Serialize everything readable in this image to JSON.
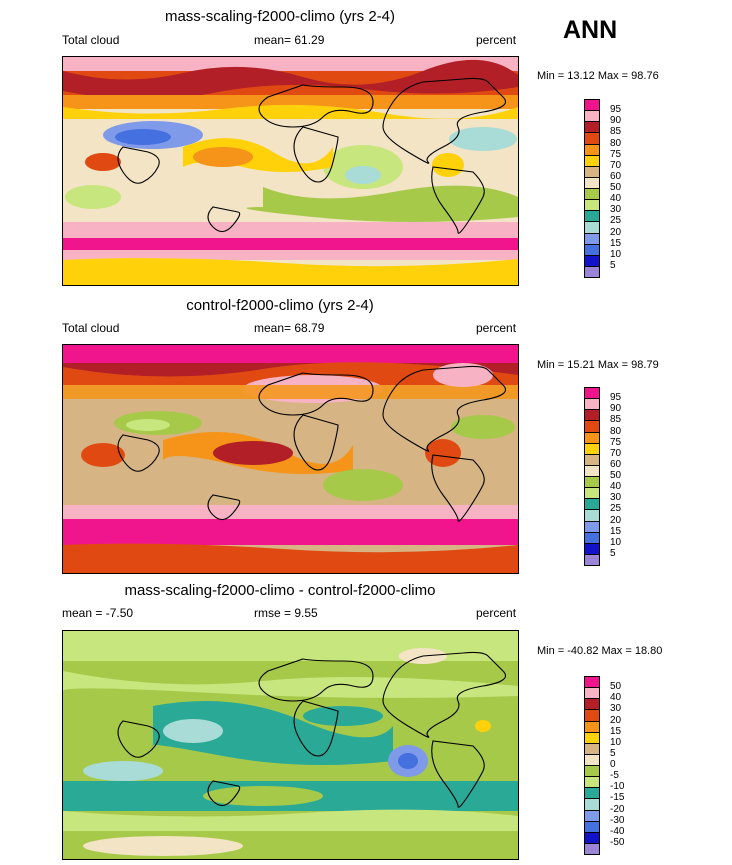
{
  "season": "ANN",
  "panels": [
    {
      "title": "mass-scaling-f2000-climo (yrs 2-4)",
      "left_label": "Total cloud",
      "center_label": "mean=  61.29",
      "right_label": "percent",
      "minmax": "Min =  13.12 Max =  98.76",
      "levels": [
        "95",
        "90",
        "85",
        "80",
        "75",
        "70",
        "60",
        "50",
        "40",
        "30",
        "25",
        "20",
        "15",
        "10",
        "5"
      ],
      "colors": [
        "#f0158c",
        "#f7b3c4",
        "#b21f26",
        "#e04a12",
        "#f59418",
        "#ffd10a",
        "#d6b483",
        "#f2e4c4",
        "#a6c94a",
        "#c8e67e",
        "#2aaa96",
        "#a9dcd6",
        "#7f9ae8",
        "#4470e0",
        "#1212c8",
        "#9a85d6"
      ]
    },
    {
      "title": "control-f2000-climo (yrs 2-4)",
      "left_label": "Total cloud",
      "center_label": "mean=  68.79",
      "right_label": "percent",
      "minmax": "Min =  15.21 Max =  98.79",
      "levels": [
        "95",
        "90",
        "85",
        "80",
        "75",
        "70",
        "60",
        "50",
        "40",
        "30",
        "25",
        "20",
        "15",
        "10",
        "5"
      ],
      "colors": [
        "#f0158c",
        "#f7b3c4",
        "#b21f26",
        "#e04a12",
        "#f59418",
        "#ffd10a",
        "#d6b483",
        "#f2e4c4",
        "#a6c94a",
        "#c8e67e",
        "#2aaa96",
        "#a9dcd6",
        "#7f9ae8",
        "#4470e0",
        "#1212c8",
        "#9a85d6"
      ]
    },
    {
      "title": "mass-scaling-f2000-climo - control-f2000-climo",
      "left_label": "mean =  -7.50",
      "center_label": "rmse =   9.55",
      "right_label": "percent",
      "minmax": "Min = -40.82 Max =  18.80",
      "levels": [
        "50",
        "40",
        "30",
        "20",
        "15",
        "10",
        "5",
        "0",
        "-5",
        "-10",
        "-15",
        "-20",
        "-30",
        "-40",
        "-50"
      ],
      "colors": [
        "#f0158c",
        "#f7b3c4",
        "#b21f26",
        "#e04a12",
        "#f59418",
        "#ffd10a",
        "#d6b483",
        "#f2e4c4",
        "#a6c94a",
        "#c8e67e",
        "#2aaa96",
        "#a9dcd6",
        "#7f9ae8",
        "#4470e0",
        "#1212c8",
        "#9a85d6"
      ]
    }
  ],
  "chart_data": [
    {
      "type": "heatmap",
      "title": "mass-scaling-f2000-climo (yrs 2-4)",
      "variable": "Total cloud",
      "units": "percent",
      "mean": 61.29,
      "min": 13.12,
      "max": 98.76,
      "contour_levels": [
        5,
        10,
        15,
        20,
        25,
        30,
        40,
        50,
        60,
        70,
        75,
        80,
        85,
        90,
        95
      ]
    },
    {
      "type": "heatmap",
      "title": "control-f2000-climo (yrs 2-4)",
      "variable": "Total cloud",
      "units": "percent",
      "mean": 68.79,
      "min": 15.21,
      "max": 98.79,
      "contour_levels": [
        5,
        10,
        15,
        20,
        25,
        30,
        40,
        50,
        60,
        70,
        75,
        80,
        85,
        90,
        95
      ]
    },
    {
      "type": "heatmap",
      "title": "mass-scaling-f2000-climo - control-f2000-climo",
      "units": "percent",
      "mean": -7.5,
      "rmse": 9.55,
      "min": -40.82,
      "max": 18.8,
      "contour_levels": [
        -50,
        -40,
        -30,
        -20,
        -15,
        -10,
        -5,
        0,
        5,
        10,
        15,
        20,
        30,
        40,
        50
      ]
    }
  ]
}
